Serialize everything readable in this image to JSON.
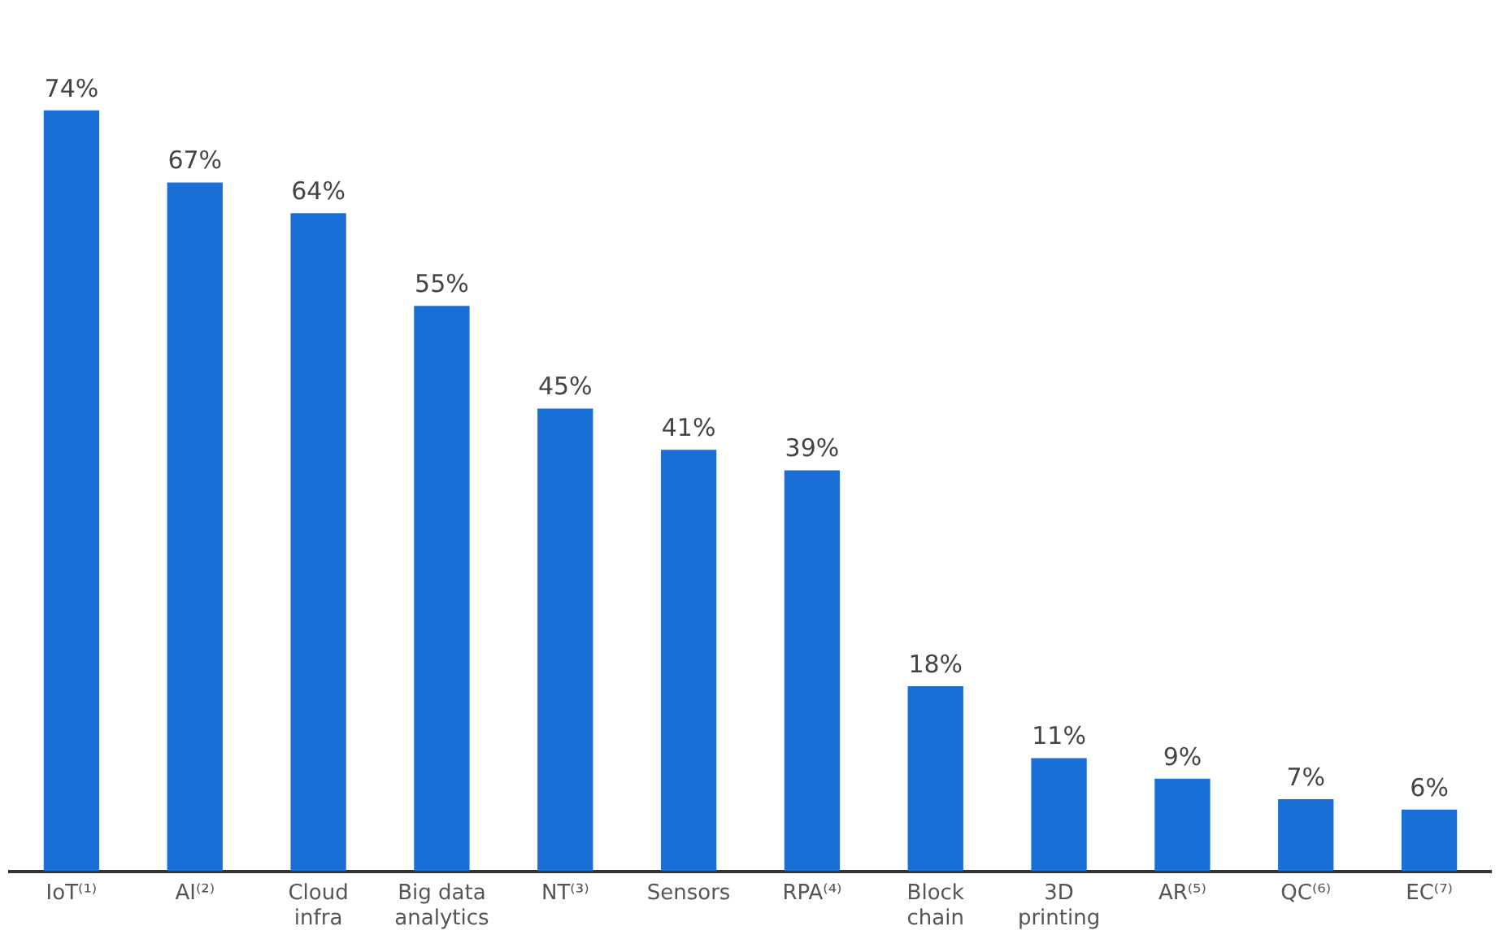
{
  "chart_data": {
    "type": "bar",
    "categories": [
      "IoT⁽¹⁾",
      "AI⁽²⁾",
      "Cloud infra",
      "Big data analytics",
      "NT⁽³⁾",
      "Sensors",
      "RPA⁽⁴⁾",
      "Block chain",
      "3D printing",
      "AR⁽⁵⁾",
      "QC⁽⁶⁾",
      "EC⁽⁷⁾"
    ],
    "values": [
      74,
      67,
      64,
      55,
      45,
      41,
      39,
      18,
      11,
      9,
      7,
      6
    ],
    "value_labels": [
      "74%",
      "67%",
      "64%",
      "55%",
      "45%",
      "41%",
      "39%",
      "18%",
      "11%",
      "9%",
      "7%",
      "6%"
    ],
    "color": "#1a6fd6",
    "grid": false,
    "legend": false
  }
}
